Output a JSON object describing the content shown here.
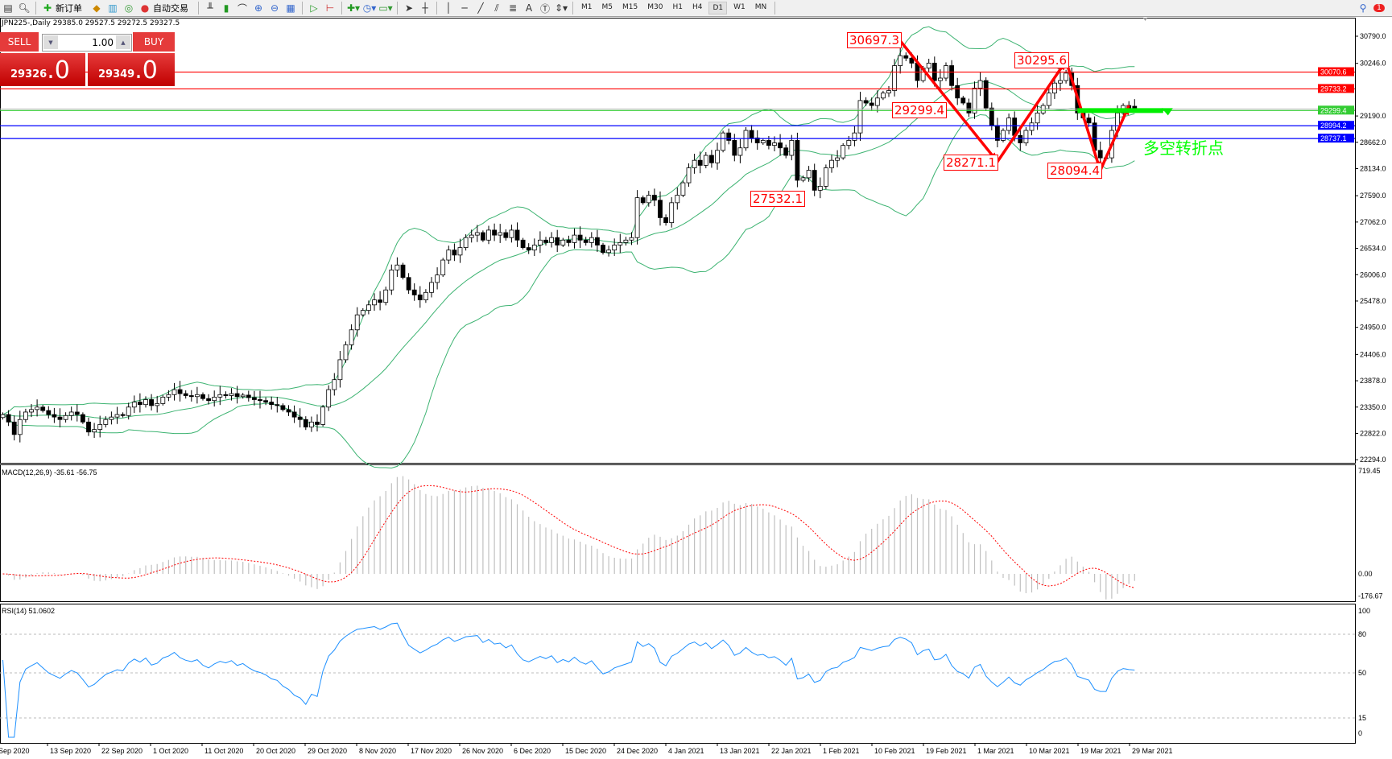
{
  "toolbar": {
    "new_order_label": "新订单",
    "auto_trading_label": "自动交易",
    "timeframes": [
      "M1",
      "M5",
      "M15",
      "M30",
      "H1",
      "H4",
      "D1",
      "W1",
      "MN"
    ],
    "selected_timeframe": "D1",
    "notification_count": "1"
  },
  "chart_header": {
    "title": "JPN225-,Daily  29385.0 29527.5 29272.5 29327.5"
  },
  "trade_panel": {
    "sell_label": "SELL",
    "buy_label": "BUY",
    "lot": "1.00",
    "sell_price_main": "29326",
    "sell_price_big": ".0",
    "buy_price_main": "29349",
    "buy_price_big": ".0"
  },
  "annotations": {
    "labels": [
      "30697.3",
      "29299.4",
      "28271.1",
      "30295.6",
      "28094.4",
      "27532.1"
    ],
    "turn_point_text": "多空转折点"
  },
  "colors": {
    "bull_candle": "#ffffff",
    "bear_candle": "#000000",
    "bands": "#3cb371",
    "resistance": "#ff0000",
    "support": "#0000ff",
    "pivot": "#33cc33",
    "zigzag": "#ff0000",
    "macd_hist": "#c0c0c0",
    "macd_signal": "#ff0000",
    "rsi": "#1e90ff"
  },
  "chart_data": [
    {
      "type": "candlestick",
      "symbol": "JPN225-",
      "timeframe": "Daily",
      "ylim": [
        22294,
        31000
      ],
      "y_ticks": [
        "30790.0",
        "30246.0",
        "29190.0",
        "28662.0",
        "28134.0",
        "27590.0",
        "27062.0",
        "26534.0",
        "26006.0",
        "25478.0",
        "24950.0",
        "24406.0",
        "23878.0",
        "23350.0",
        "22822.0",
        "22294.0"
      ],
      "x_tick_labels": [
        "Sep 2020",
        "13 Sep 2020",
        "22 Sep 2020",
        "1 Oct 2020",
        "11 Oct 2020",
        "20 Oct 2020",
        "29 Oct 2020",
        "8 Nov 2020",
        "17 Nov 2020",
        "26 Nov 2020",
        "6 Dec 2020",
        "15 Dec 2020",
        "24 Dec 2020",
        "4 Jan 2021",
        "13 Jan 2021",
        "22 Jan 2021",
        "1 Feb 2021",
        "10 Feb 2021",
        "19 Feb 2021",
        "1 Mar 2021",
        "10 Mar 2021",
        "19 Mar 2021",
        "29 Mar 2021"
      ],
      "closes": [
        23200,
        23050,
        22800,
        23100,
        23250,
        23300,
        23350,
        23280,
        23200,
        23150,
        23100,
        23180,
        23250,
        23200,
        23050,
        22850,
        22900,
        23000,
        23100,
        23150,
        23200,
        23180,
        23350,
        23450,
        23400,
        23500,
        23380,
        23420,
        23550,
        23600,
        23700,
        23620,
        23580,
        23560,
        23600,
        23520,
        23480,
        23550,
        23600,
        23580,
        23620,
        23560,
        23590,
        23540,
        23500,
        23480,
        23450,
        23400,
        23380,
        23300,
        23250,
        23150,
        23100,
        22950,
        23050,
        23000,
        23350,
        23700,
        23900,
        24300,
        24600,
        24900,
        25200,
        25290,
        25400,
        25500,
        25450,
        25700,
        26100,
        26200,
        25950,
        25700,
        25600,
        25500,
        25650,
        25850,
        26000,
        26300,
        26500,
        26400,
        26550,
        26750,
        26800,
        26850,
        26700,
        26900,
        26800,
        26850,
        26750,
        26900,
        26700,
        26550,
        26500,
        26600,
        26700,
        26650,
        26750,
        26600,
        26700,
        26650,
        26800,
        26700,
        26650,
        26750,
        26600,
        26450,
        26500,
        26600,
        26650,
        26700,
        26750,
        27550,
        27450,
        27600,
        27500,
        27150,
        27050,
        27450,
        27600,
        27850,
        28150,
        28300,
        28200,
        28400,
        28250,
        28500,
        28850,
        28700,
        28400,
        28550,
        28900,
        28750,
        28650,
        28700,
        28600,
        28650,
        28550,
        28400,
        28700,
        27900,
        27950,
        28100,
        27700,
        27780,
        28150,
        28300,
        28350,
        28600,
        28700,
        28850,
        29500,
        29450,
        29400,
        29550,
        29650,
        29700,
        30200,
        30400,
        30350,
        30250,
        29900,
        30150,
        30250,
        29900,
        29950,
        30200,
        29800,
        29550,
        29450,
        29250,
        29750,
        29900,
        29350,
        29000,
        28700,
        28900,
        29150,
        28800,
        28650,
        28900,
        29050,
        29250,
        29400,
        29650,
        29850,
        29900,
        30050,
        29800,
        29250,
        29150,
        29050,
        28500,
        28350,
        28350,
        28900,
        29250,
        29400,
        29350,
        29327.5
      ],
      "last_bar_ohlc": {
        "open": 29385.0,
        "high": 29527.5,
        "low": 29272.5,
        "close": 29327.5
      },
      "indicators": [
        "Bollinger Bands(20,2)"
      ],
      "horizontal_lines": [
        {
          "price": 30070.6,
          "label": "30070.6",
          "color": "#ff0000"
        },
        {
          "price": 29733.2,
          "label": "29733.2",
          "color": "#ff0000"
        },
        {
          "price": 29299.4,
          "label": "29299.4",
          "color": "#33cc33"
        },
        {
          "price": 28994.2,
          "label": "28994.2",
          "color": "#0000ff"
        },
        {
          "price": 28737.1,
          "label": "28737.1",
          "color": "#0000ff"
        }
      ],
      "zigzag": [
        {
          "bar": 157,
          "price": 30697.3
        },
        {
          "bar": 174,
          "price": 28271.1
        },
        {
          "bar": 186,
          "price": 30295.6
        },
        {
          "bar": 192,
          "price": 28094.4
        },
        {
          "bar": 197,
          "price": 29400
        }
      ],
      "pivot_line": {
        "price": 29299.4,
        "from_bar": 188,
        "to_bar": 203
      }
    },
    {
      "type": "bar+line",
      "title": "MACD(12,26,9) -35.61 -56.75",
      "y_ticks": [
        "719.45",
        "0.00",
        "-176.67"
      ],
      "ylim": [
        -176.67,
        719.45
      ]
    },
    {
      "type": "line",
      "title": "RSI(14) 51.0602",
      "y_ticks": [
        "100",
        "80",
        "50",
        "15",
        "0"
      ],
      "levels": [
        80,
        50,
        15
      ],
      "ylim": [
        0,
        100
      ]
    }
  ]
}
